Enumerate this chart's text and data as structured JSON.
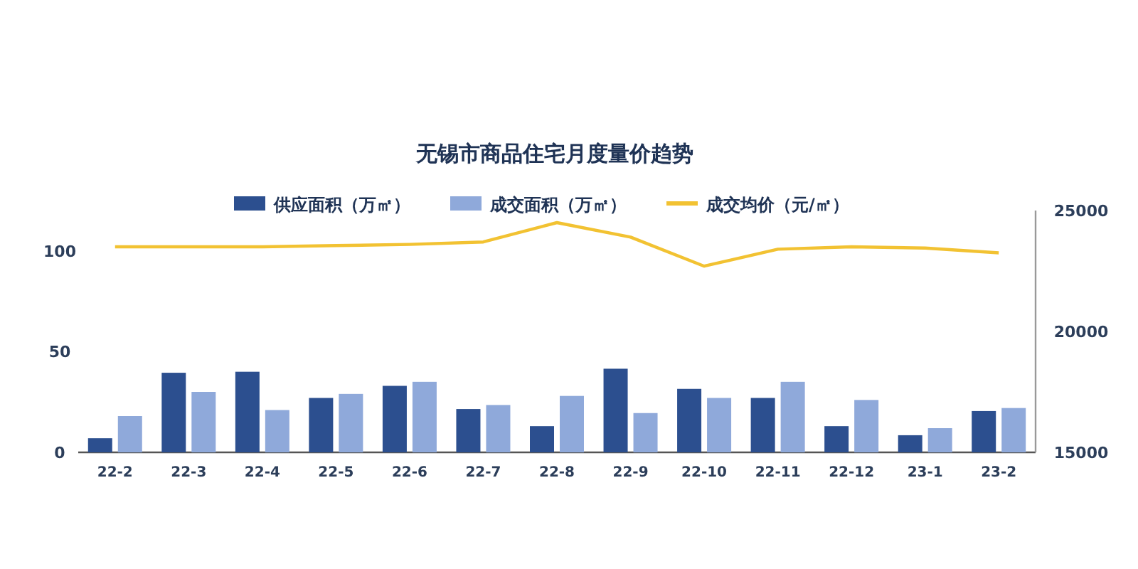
{
  "chart_data": {
    "type": "bar",
    "title": "无锡市商品住宅月度量价趋势",
    "categories": [
      "22-2",
      "22-3",
      "22-4",
      "22-5",
      "22-6",
      "22-7",
      "22-8",
      "22-9",
      "22-10",
      "22-11",
      "22-12",
      "23-1",
      "23-2"
    ],
    "series": [
      {
        "name": "供应面积（万㎡）",
        "color": "#2c4f8f",
        "values": [
          7,
          39.5,
          40,
          27,
          33,
          21.5,
          13,
          41.5,
          31.5,
          27,
          13,
          8.5,
          20.5
        ]
      },
      {
        "name": "成交面积（万㎡）",
        "color": "#8fa9da",
        "values": [
          18,
          30,
          21,
          29,
          35,
          23.5,
          28,
          19.5,
          27,
          35,
          26,
          12,
          22
        ]
      },
      {
        "name": "成交均价（元/㎡）",
        "color": "#f2c232",
        "type": "line",
        "axis": "y2",
        "values": [
          23500,
          23500,
          23500,
          23550,
          23600,
          23700,
          24500,
          23900,
          22700,
          23400,
          23500,
          23450,
          23250
        ]
      }
    ],
    "ylim": [
      0,
      120
    ],
    "yticks": [
      0,
      50,
      100
    ],
    "y2lim": [
      15000,
      25000
    ],
    "y2ticks": [
      15000,
      20000,
      25000
    ],
    "legend": "top"
  }
}
